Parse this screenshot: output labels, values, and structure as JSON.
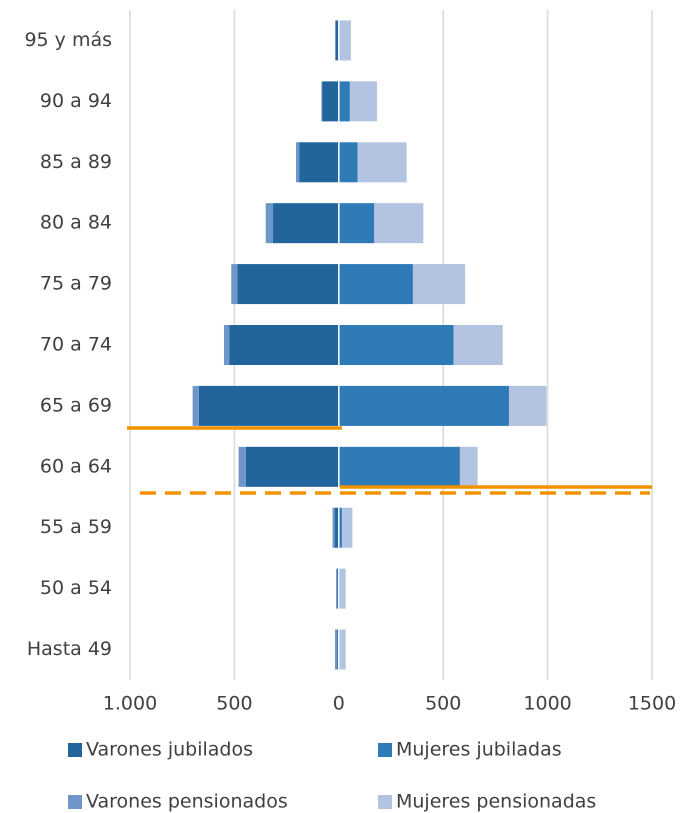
{
  "chart_data": {
    "type": "bar",
    "orientation": "horizontal",
    "stacked": true,
    "grid": true,
    "categories": [
      "95 y más",
      "90 a 94",
      "85 a 89",
      "80 a 84",
      "75 a 79",
      "70 a 74",
      "65 a 69",
      "60 a 64",
      "55 a 59",
      "50 a 54",
      "Hasta 49"
    ],
    "series": [
      {
        "name": "Varones jubilados",
        "color": "#22649c",
        "values": [
          -15,
          -80,
          -190,
          -315,
          -485,
          -525,
          -670,
          -445,
          -20,
          -8,
          -8
        ]
      },
      {
        "name": "Mujeres jubiladas",
        "color": "#2e7bb8",
        "values": [
          3,
          53,
          90,
          170,
          355,
          550,
          815,
          580,
          15,
          5,
          3
        ]
      },
      {
        "name": "Varones pensionados",
        "color": "#6f96c9",
        "values": [
          -3,
          -3,
          -15,
          -35,
          -30,
          -25,
          -30,
          -35,
          -10,
          -5,
          -10
        ]
      },
      {
        "name": "Mujeres pensionadas",
        "color": "#b2c4e1",
        "values": [
          55,
          130,
          235,
          235,
          250,
          235,
          180,
          85,
          50,
          28,
          30
        ]
      }
    ],
    "xlim": [
      -1000,
      1500
    ],
    "xticks": [
      {
        "value": -1000,
        "label": "1.000"
      },
      {
        "value": -500,
        "label": "500"
      },
      0,
      500,
      1000,
      1500
    ]
  }
}
